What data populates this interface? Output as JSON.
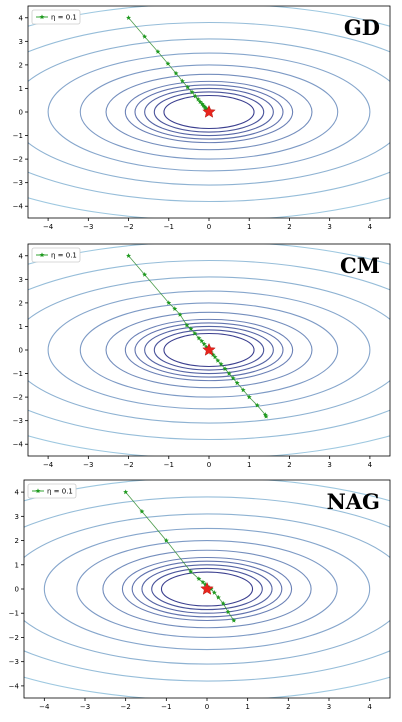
{
  "chart_data": [
    {
      "type": "line",
      "title": "GD",
      "legend": {
        "label": "η = 0.1",
        "placement": "top-left"
      },
      "xlim": [
        -4.5,
        4.5
      ],
      "ylim": [
        -4.5,
        4.5
      ],
      "xticks": [
        -4,
        -3,
        -2,
        -1,
        0,
        1,
        2,
        3,
        4
      ],
      "yticks": [
        -4,
        -3,
        -2,
        -1,
        0,
        1,
        2,
        3,
        4
      ],
      "contours": {
        "center": [
          0,
          0
        ],
        "aspect_x_to_y": 1.6,
        "levels": [
          0.7,
          0.85,
          1.0,
          1.15,
          1.3,
          1.6,
          2.0,
          2.5,
          3.1,
          3.8,
          4.6,
          5.5
        ]
      },
      "series": [
        {
          "x": [
            -2.0,
            -1.6,
            -1.27,
            -1.02,
            -0.82,
            -0.66,
            -0.53,
            -0.42,
            -0.34,
            -0.27,
            -0.22,
            -0.17,
            -0.14,
            -0.11,
            -0.09,
            -0.07,
            -0.05,
            -0.03,
            -0.01
          ],
          "y": [
            4.0,
            3.2,
            2.56,
            2.05,
            1.64,
            1.31,
            1.05,
            0.84,
            0.67,
            0.54,
            0.43,
            0.34,
            0.27,
            0.22,
            0.17,
            0.13,
            0.09,
            0.05,
            0.02
          ]
        }
      ],
      "optimum": [
        0,
        0
      ],
      "colors": {
        "path": "#1f9a1f",
        "optimum": "#e8241c",
        "contour_inner": "#3b3f8f",
        "contour_outer": "#a6d3e6"
      }
    },
    {
      "type": "line",
      "title": "CM",
      "legend": {
        "label": "η = 0.1",
        "placement": "top-left"
      },
      "xlim": [
        -4.5,
        4.5
      ],
      "ylim": [
        -4.5,
        4.5
      ],
      "xticks": [
        -4,
        -3,
        -2,
        -1,
        0,
        1,
        2,
        3,
        4
      ],
      "yticks": [
        -4,
        -3,
        -2,
        -1,
        0,
        1,
        2,
        3,
        4
      ],
      "contours": {
        "center": [
          0,
          0
        ],
        "aspect_x_to_y": 1.6,
        "levels": [
          0.7,
          0.85,
          1.0,
          1.15,
          1.3,
          1.6,
          2.0,
          2.5,
          3.1,
          3.8,
          4.6,
          5.5
        ]
      },
      "series": [
        {
          "x": [
            -2.0,
            -1.6,
            -1.0,
            -0.85,
            -0.72,
            -0.55,
            -0.45,
            -0.35,
            -0.25,
            -0.18,
            -0.12,
            -0.06,
            0.0,
            0.05,
            0.1,
            0.15,
            0.22,
            0.3,
            0.4,
            0.5,
            0.6,
            0.7,
            0.85,
            1.0,
            1.2,
            1.4,
            1.42
          ],
          "y": [
            4.0,
            3.2,
            2.0,
            1.75,
            1.5,
            1.05,
            0.9,
            0.7,
            0.5,
            0.38,
            0.25,
            0.12,
            0.0,
            -0.1,
            -0.2,
            -0.3,
            -0.45,
            -0.6,
            -0.8,
            -1.0,
            -1.2,
            -1.4,
            -1.7,
            -2.0,
            -2.35,
            -2.75,
            -2.82
          ]
        }
      ],
      "optimum": [
        0,
        0
      ],
      "colors": {
        "path": "#1f9a1f",
        "optimum": "#e8241c",
        "contour_inner": "#3b3f8f",
        "contour_outer": "#a6d3e6"
      }
    },
    {
      "type": "line",
      "title": "NAG",
      "legend": {
        "label": "η = 0.1",
        "placement": "top-left"
      },
      "xlim": [
        -4.5,
        4.5
      ],
      "ylim": [
        -4.5,
        4.5
      ],
      "xticks": [
        -4,
        -3,
        -2,
        -1,
        0,
        1,
        2,
        3,
        4
      ],
      "yticks": [
        -4,
        -3,
        -2,
        -1,
        0,
        1,
        2,
        3,
        4
      ],
      "contours": {
        "center": [
          0,
          0
        ],
        "aspect_x_to_y": 1.6,
        "levels": [
          0.7,
          0.85,
          1.0,
          1.15,
          1.3,
          1.6,
          2.0,
          2.5,
          3.1,
          3.8,
          4.6,
          5.5
        ]
      },
      "series": [
        {
          "x": [
            -2.0,
            -1.6,
            -1.0,
            -0.4,
            -0.2,
            -0.1,
            -0.04,
            0.02,
            0.1,
            0.18,
            0.28,
            0.4,
            0.52,
            0.66
          ],
          "y": [
            4.0,
            3.2,
            2.0,
            0.72,
            0.42,
            0.28,
            0.18,
            0.1,
            0.0,
            -0.15,
            -0.35,
            -0.6,
            -0.95,
            -1.3
          ]
        }
      ],
      "optimum": [
        0,
        0
      ],
      "colors": {
        "path": "#1f9a1f",
        "optimum": "#e8241c",
        "contour_inner": "#3b3f8f",
        "contour_outer": "#a6d3e6"
      }
    }
  ]
}
